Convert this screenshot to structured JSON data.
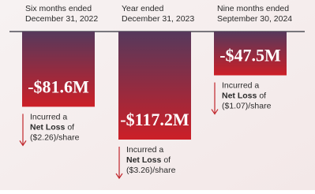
{
  "chart_data": {
    "type": "bar",
    "categories": [
      [
        "Six months ended",
        "December 31, 2022"
      ],
      [
        "Year ended",
        "December 31, 2023"
      ],
      [
        "Nine months ended",
        "September 30, 2024"
      ]
    ],
    "values": [
      -81.6,
      -117.2,
      -47.5
    ],
    "value_labels": [
      "-$81.6M",
      "-$117.2M",
      "-$47.5M"
    ],
    "notes": [
      {
        "lead": "Incurred a",
        "bold": "Net Loss",
        "tail": "of",
        "per_share": "($2.26)/share"
      },
      {
        "lead": "Incurred a",
        "bold": "Net Loss",
        "tail": "of",
        "per_share": "($3.26)/share"
      },
      {
        "lead": "Incurred a",
        "bold": "Net Loss",
        "tail": "of",
        "per_share": "($1.07)/share"
      }
    ],
    "color_top": "#56395c",
    "color_bottom": "#cc1f27",
    "arrow_color": "#c0262c"
  }
}
